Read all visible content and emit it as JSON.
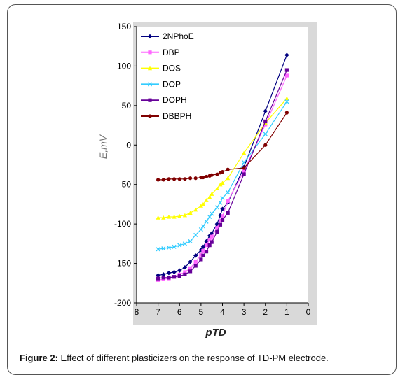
{
  "caption": {
    "label": "Figure 2:",
    "text": "Effect of different plasticizers on the response of TD-PM electrode."
  },
  "chart_data": {
    "type": "line",
    "xlabel": "pTD",
    "ylabel": "E,mV",
    "xlim": [
      8,
      0
    ],
    "ylim": [
      -200,
      150
    ],
    "x_ticks": [
      8,
      7,
      6,
      5,
      4,
      3,
      2,
      1,
      0
    ],
    "y_ticks": [
      150,
      100,
      50,
      0,
      -50,
      -100,
      -150,
      -200
    ],
    "x_reversed": true,
    "grid": false,
    "legend": "top-left",
    "series": [
      {
        "name": "2NPhoE",
        "color": "#000080",
        "marker": "diamond",
        "x": [
          7,
          6.75,
          6.5,
          6.25,
          6,
          5.75,
          5.5,
          5.25,
          5,
          4.9,
          4.75,
          4.6,
          4.5,
          4.25,
          4.1,
          4,
          3.75,
          3,
          2,
          1
        ],
        "y": [
          -165,
          -164,
          -162,
          -161,
          -159,
          -155,
          -148,
          -140,
          -133,
          -129,
          -122,
          -115,
          -112,
          -100,
          -89,
          -81,
          -73,
          -28,
          43,
          114
        ]
      },
      {
        "name": "DBP",
        "color": "#FF66FF",
        "marker": "square",
        "x": [
          7,
          6.75,
          6.5,
          6.25,
          6,
          5.75,
          5.5,
          5.25,
          5,
          4.9,
          4.75,
          4.6,
          4.5,
          4.25,
          4.1,
          4,
          3.75,
          3,
          2,
          1
        ],
        "y": [
          -171,
          -170,
          -169,
          -167,
          -164,
          -161,
          -156,
          -148,
          -139,
          -134,
          -127,
          -120,
          -116,
          -105,
          -96,
          -90,
          -71,
          -33,
          26,
          88
        ]
      },
      {
        "name": "DOS",
        "color": "#FFFF00",
        "marker": "triangle",
        "x": [
          7,
          6.75,
          6.5,
          6.25,
          6,
          5.75,
          5.5,
          5.25,
          5,
          4.9,
          4.75,
          4.6,
          4.5,
          4.25,
          4.1,
          4,
          3.75,
          3,
          2,
          1
        ],
        "y": [
          -92,
          -92,
          -91,
          -91,
          -90,
          -89,
          -86,
          -82,
          -77,
          -75,
          -70,
          -66,
          -62,
          -55,
          -50,
          -48,
          -42,
          -10,
          28,
          59
        ]
      },
      {
        "name": "DOP",
        "color": "#33CCFF",
        "marker": "cross",
        "x": [
          7,
          6.75,
          6.5,
          6.25,
          6,
          5.75,
          5.5,
          5.25,
          5,
          4.9,
          4.75,
          4.6,
          4.5,
          4.25,
          4.1,
          4,
          3.75,
          3,
          2,
          1
        ],
        "y": [
          -132,
          -131,
          -130,
          -129,
          -127,
          -125,
          -122,
          -114,
          -107,
          -103,
          -97,
          -91,
          -87,
          -79,
          -73,
          -67,
          -60,
          -22,
          14,
          55
        ]
      },
      {
        "name": "DOPH",
        "color": "#660099",
        "marker": "square",
        "x": [
          7,
          6.75,
          6.5,
          6.25,
          6,
          5.75,
          5.5,
          5.25,
          5,
          4.9,
          4.75,
          4.6,
          4.5,
          4.25,
          4.1,
          4,
          3.75,
          3,
          2,
          1
        ],
        "y": [
          -169,
          -168,
          -168,
          -167,
          -166,
          -164,
          -160,
          -153,
          -145,
          -140,
          -135,
          -127,
          -123,
          -110,
          -101,
          -95,
          -86,
          -37,
          30,
          95
        ]
      },
      {
        "name": "DBBPH",
        "color": "#800000",
        "marker": "circle",
        "x": [
          7,
          6.75,
          6.5,
          6.25,
          6,
          5.75,
          5.5,
          5.25,
          5,
          4.9,
          4.75,
          4.6,
          4.5,
          4.25,
          4.1,
          4,
          3.75,
          3,
          2,
          1
        ],
        "y": [
          -44,
          -44,
          -43,
          -43,
          -43,
          -43,
          -42,
          -42,
          -41,
          -41,
          -40,
          -39,
          -38,
          -37,
          -35,
          -34,
          -31,
          -29,
          0,
          41
        ]
      }
    ]
  }
}
